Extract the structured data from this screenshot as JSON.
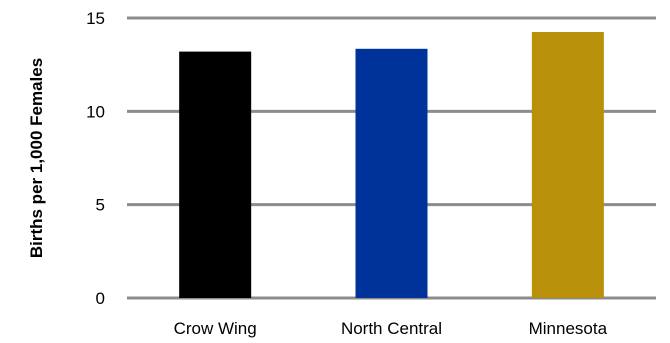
{
  "chart_data": {
    "type": "bar",
    "categories": [
      "Crow Wing",
      "North Central",
      "Minnesota"
    ],
    "values": [
      13.2,
      13.35,
      14.25
    ],
    "colors": [
      "#000000",
      "#003399",
      "#b8900a"
    ],
    "ylabel": "Births per 1,000 Females",
    "xlabel": "",
    "ylim": [
      0,
      15
    ],
    "yticks": [
      0,
      5,
      10,
      15
    ],
    "grid": true,
    "gridline_color": "#8c8c8c"
  }
}
